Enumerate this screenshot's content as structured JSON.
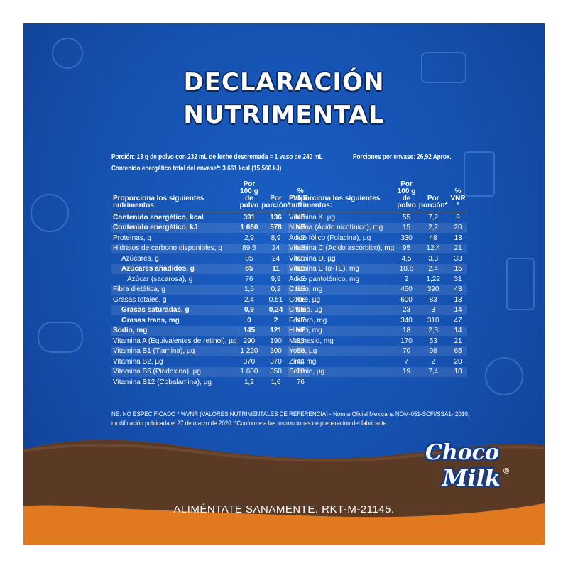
{
  "title_line1": "DECLARACIÓN",
  "title_line2": "NUTRIMENTAL",
  "serving": {
    "portion": "Porción: 13 g de polvo con 232 mL de leche descremada = 1 vaso de 240 mL",
    "servings_per_pack": "Porciones por envase: 26,92 Aprox.",
    "energy": "Contenido energético total del envase*: 3 661 kcal   (15 560 kJ)"
  },
  "left_table": {
    "headers": [
      "Proporciona los siguientes nutrimentos:",
      "Por 100 g de polvo",
      "Por porción*",
      "% VNR *"
    ],
    "rows": [
      {
        "name": "Contenido energético, kcal",
        "per100": "391",
        "portion": "136",
        "vnr": "NE",
        "bold": true,
        "indent": 0
      },
      {
        "name": "Contenido energético, kJ",
        "per100": "1 660",
        "portion": "578",
        "vnr": "NE",
        "bold": true,
        "indent": 0
      },
      {
        "name": "Proteínas, g",
        "per100": "2,9",
        "portion": "8,9",
        "vnr": "NE",
        "bold": false,
        "indent": 0
      },
      {
        "name": "Hidratos de carbono disponibles, g",
        "per100": "89,5",
        "portion": "24",
        "vnr": "NE",
        "bold": false,
        "indent": 0
      },
      {
        "name": "Azúcares, g",
        "per100": "85",
        "portion": "24",
        "vnr": "NE",
        "bold": false,
        "indent": 1
      },
      {
        "name": "Azúcares añadidos, g",
        "per100": "85",
        "portion": "11",
        "vnr": "NE",
        "bold": true,
        "indent": 1
      },
      {
        "name": "Azúcar (sacarosa), g",
        "per100": "76",
        "portion": "9,9",
        "vnr": "NE",
        "bold": false,
        "indent": 2
      },
      {
        "name": "Fibra dietética, g",
        "per100": "1,5",
        "portion": "0,2",
        "vnr": "NE",
        "bold": false,
        "indent": 0
      },
      {
        "name": "Grasas totales, g",
        "per100": "2,4",
        "portion": "0,51",
        "vnr": "NE",
        "bold": false,
        "indent": 0
      },
      {
        "name": "Grasas saturadas, g",
        "per100": "0,9",
        "portion": "0,24",
        "vnr": "NE",
        "bold": true,
        "indent": 1
      },
      {
        "name": "Grasas trans, mg",
        "per100": "0",
        "portion": "2",
        "vnr": "NE",
        "bold": true,
        "indent": 1
      },
      {
        "name": "Sodio, mg",
        "per100": "145",
        "portion": "121",
        "vnr": "NE",
        "bold": true,
        "indent": 0
      },
      {
        "name": "Vitamina A (Equivalentes de retinol), µg",
        "per100": "290",
        "portion": "190",
        "vnr": "33",
        "bold": false,
        "indent": 0
      },
      {
        "name": "Vitamina B1 (Tiamina), µg",
        "per100": "1 220",
        "portion": "300",
        "vnr": "38",
        "bold": false,
        "indent": 0
      },
      {
        "name": "Vitamina B2, µg",
        "per100": "370",
        "portion": "370",
        "vnr": "44",
        "bold": false,
        "indent": 0
      },
      {
        "name": "Vitamina B6 (Piridoxina), µg",
        "per100": "1 600",
        "portion": "350",
        "vnr": "38",
        "bold": false,
        "indent": 0
      },
      {
        "name": "Vitamina B12 (Cobalamina), µg",
        "per100": "1,2",
        "portion": "1,6",
        "vnr": "76",
        "bold": false,
        "indent": 0
      }
    ]
  },
  "right_table": {
    "headers": [
      "Proporciona los siguientes nutrimentos:",
      "Por 100 g de polvo",
      "Por porción*",
      "% VNR *"
    ],
    "rows": [
      {
        "name": "Vitamina K, µg",
        "per100": "55",
        "portion": "7,2",
        "vnr": "9"
      },
      {
        "name": "Niacina (Ácido nicotínico), mg",
        "per100": "15",
        "portion": "2,2",
        "vnr": "20"
      },
      {
        "name": "Ácido fólico (Folacina), µg",
        "per100": "330",
        "portion": "48",
        "vnr": "13"
      },
      {
        "name": "Vitamina C (Ácido ascórbico), mg",
        "per100": "95",
        "portion": "12,4",
        "vnr": "21"
      },
      {
        "name": "Vitamina D, µg",
        "per100": "4,5",
        "portion": "3,3",
        "vnr": "33"
      },
      {
        "name": "Vitamina E (α-TE), mg",
        "per100": "18,8",
        "portion": "2,4",
        "vnr": "15"
      },
      {
        "name": "Ácido pantoténico, mg",
        "per100": "2",
        "portion": "1,22",
        "vnr": "31"
      },
      {
        "name": "Calcio, mg",
        "per100": "450",
        "portion": "390",
        "vnr": "43"
      },
      {
        "name": "Cobre, µg",
        "per100": "600",
        "portion": "83",
        "vnr": "13"
      },
      {
        "name": "Cromo, µg",
        "per100": "23",
        "portion": "3",
        "vnr": "14"
      },
      {
        "name": "Fósforo, mg",
        "per100": "340",
        "portion": "310",
        "vnr": "47"
      },
      {
        "name": "Hierro, mg",
        "per100": "18",
        "portion": "2,3",
        "vnr": "14"
      },
      {
        "name": "Magnesio, mg",
        "per100": "170",
        "portion": "53",
        "vnr": "21"
      },
      {
        "name": "Yodo, µg",
        "per100": "70",
        "portion": "98",
        "vnr": "65"
      },
      {
        "name": "Zinc, mg",
        "per100": "7",
        "portion": "2",
        "vnr": "20"
      },
      {
        "name": "Selenio, µg",
        "per100": "19",
        "portion": "7,4",
        "vnr": "18"
      }
    ]
  },
  "notes": {
    "line1": "NE: NO ESPECIFICADO      * %VNR (VALORES NUTRIMENTALES DE REFERENCIA) - Norma Oficial Mexicana NOM-051-SCFI/SSA1- 2010,",
    "line2": "modificación publicada el 27 de marzo de 2020.   *Conforme a las instrucciones de preparación del fabricante."
  },
  "logo": {
    "line1": "Choco",
    "line2": "Milk",
    "mark": "®"
  },
  "footer": "ALIMÉNTATE SANAMENTE. RKT-M-21145.",
  "colors": {
    "panel_blue": "#1550ae",
    "chocolate": "#5a3a25",
    "orange": "#e0791f",
    "white": "#ffffff"
  }
}
